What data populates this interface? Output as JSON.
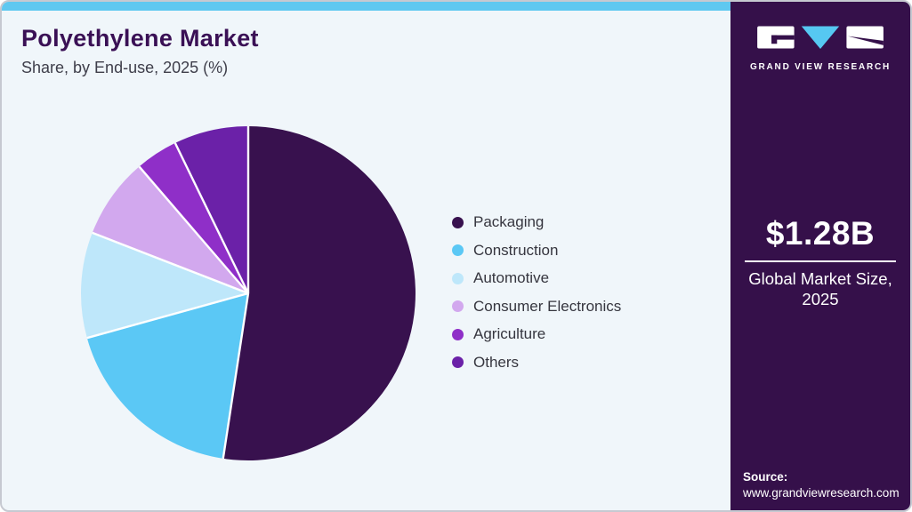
{
  "header": {
    "title": "Polyethylene Market",
    "subtitle": "Share, by End-use, 2025 (%)"
  },
  "chart_data": {
    "type": "pie",
    "title": "Polyethylene Market Share, by End-use, 2025 (%)",
    "unit": "%",
    "categories": [
      "Packaging",
      "Construction",
      "Automotive",
      "Consumer Electronics",
      "Agriculture",
      "Others"
    ],
    "values": [
      52.4,
      18.3,
      10.2,
      7.8,
      4.1,
      7.2
    ],
    "colors": [
      "#38114E",
      "#5BC8F5",
      "#BEE7FA",
      "#D2A8EE",
      "#8F2FC8",
      "#6B21A8"
    ],
    "start_angle_deg": 0,
    "direction": "clockwise",
    "legend_position": "right",
    "data_labels_shown": false
  },
  "sidebar": {
    "brand": "GRAND VIEW RESEARCH",
    "market_size": {
      "value": "$1.28B",
      "label": "Global Market Size, 2025"
    },
    "source": {
      "label": "Source:",
      "url": "www.grandviewresearch.com"
    }
  },
  "theme": {
    "card_background": "#F0F6FA",
    "top_bar_color": "#5FC8F0",
    "sidebar_background": "#35104A",
    "title_color": "#3A1055"
  }
}
